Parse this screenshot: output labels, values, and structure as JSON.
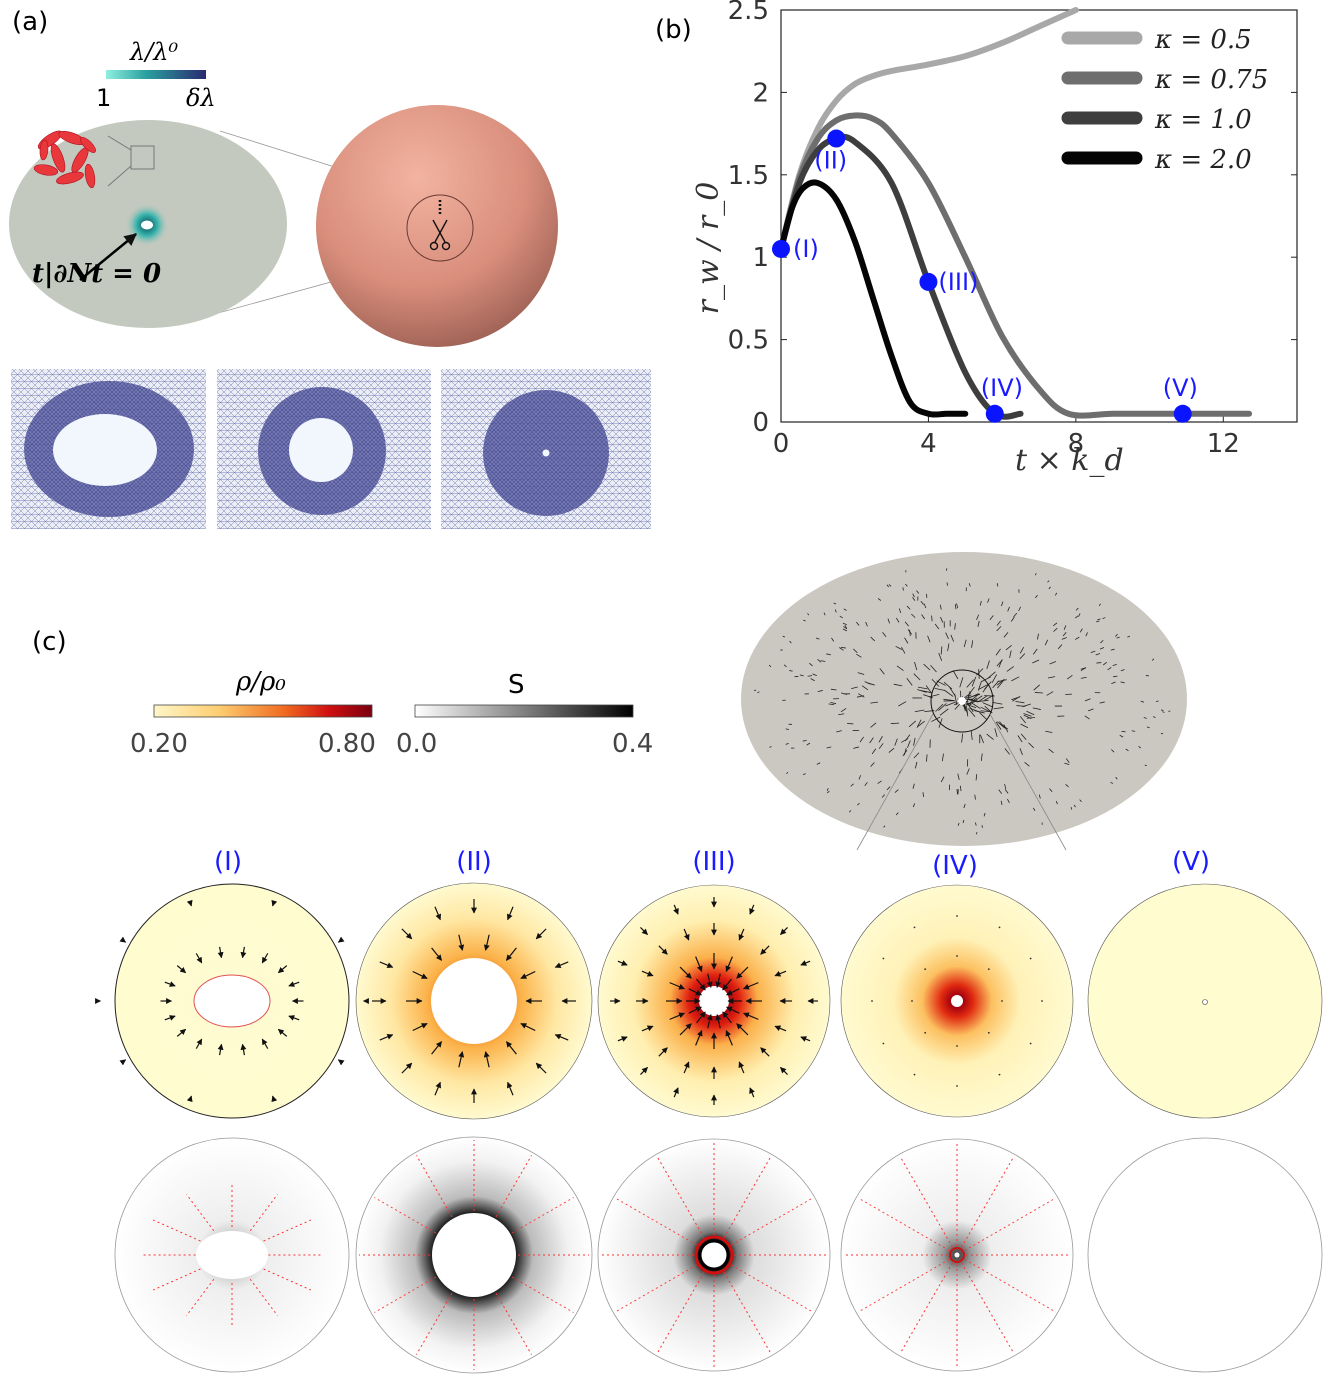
{
  "panel_labels": {
    "a": "(a)",
    "b": "(b)",
    "c": "(c)"
  },
  "panel_a": {
    "colorbar_title": "λ/λ⁰",
    "colorbar_min": "1",
    "colorbar_max": "δλ",
    "boundary_condition": "t|∂Nt = 0",
    "colors": {
      "colormap_low": "#7fe0d8",
      "colormap_high": "#2a2a70",
      "sheet": "#c4c9bf",
      "sphere": "#e8a090",
      "mesh": "#3a3f8f"
    }
  },
  "panel_b": {
    "chart_data": {
      "type": "line",
      "xlabel": "t × k_d",
      "ylabel": "r_w / r_0",
      "xlim": [
        0,
        14
      ],
      "ylim": [
        0,
        2.5
      ],
      "x_ticks": [
        "0",
        "4",
        "8",
        "12"
      ],
      "y_ticks": [
        "0",
        "0.5",
        "1",
        "1.5",
        "2",
        "2.5"
      ],
      "legend_position": "top-right",
      "series": [
        {
          "name": "κ = 0.5",
          "color": "#a8a8a8",
          "x": [
            0,
            0.5,
            1,
            1.5,
            2,
            2.5,
            3,
            4,
            5,
            6,
            7,
            8
          ],
          "y": [
            1.05,
            1.5,
            1.78,
            1.95,
            2.05,
            2.1,
            2.13,
            2.17,
            2.22,
            2.3,
            2.4,
            2.5
          ]
        },
        {
          "name": "κ = 0.75",
          "color": "#6e6e6e",
          "x": [
            0,
            0.5,
            1,
            1.5,
            2,
            2.5,
            3,
            4,
            5,
            6,
            7,
            7.8,
            9,
            10,
            11,
            12.7
          ],
          "y": [
            1.05,
            1.48,
            1.72,
            1.83,
            1.86,
            1.84,
            1.75,
            1.45,
            1.0,
            0.52,
            0.2,
            0.05,
            0.05,
            0.05,
            0.05,
            0.05
          ]
        },
        {
          "name": "κ = 1.0",
          "color": "#3e3e3e",
          "x": [
            0,
            0.5,
            1,
            1.5,
            2,
            3,
            4,
            5,
            5.8,
            6.5
          ],
          "y": [
            1.05,
            1.45,
            1.65,
            1.72,
            1.7,
            1.45,
            0.85,
            0.3,
            0.05,
            0.05
          ]
        },
        {
          "name": "κ = 2.0",
          "color": "#050505",
          "x": [
            0,
            0.3,
            0.6,
            1,
            1.5,
            2,
            2.5,
            3,
            3.5,
            4,
            4.5,
            5
          ],
          "y": [
            1.05,
            1.3,
            1.42,
            1.45,
            1.35,
            1.1,
            0.75,
            0.4,
            0.12,
            0.05,
            0.05,
            0.05
          ]
        }
      ],
      "markers": [
        {
          "label": "(I)",
          "x": 0,
          "y": 1.05
        },
        {
          "label": "(II)",
          "x": 1.5,
          "y": 1.72
        },
        {
          "label": "(III)",
          "x": 4,
          "y": 0.85
        },
        {
          "label": "(IV)",
          "x": 5.8,
          "y": 0.05
        },
        {
          "label": "(V)",
          "x": 10.9,
          "y": 0.05
        }
      ]
    }
  },
  "panel_c": {
    "rho_colorbar": {
      "title": "ρ/ρ₀",
      "min": "0.20",
      "max": "0.80",
      "low_color": "#fff6c8",
      "high_color": "#7a0010"
    },
    "s_colorbar": {
      "title": "S",
      "min": "0.0",
      "max": "0.4",
      "low_color": "#ffffff",
      "high_color": "#000000"
    },
    "stage_labels": [
      "(I)",
      "(II)",
      "(III)",
      "(IV)",
      "(V)"
    ],
    "colors": {
      "field_background": "#fffccc",
      "dish": "#cbc8c2",
      "director": "#ff3030"
    }
  }
}
